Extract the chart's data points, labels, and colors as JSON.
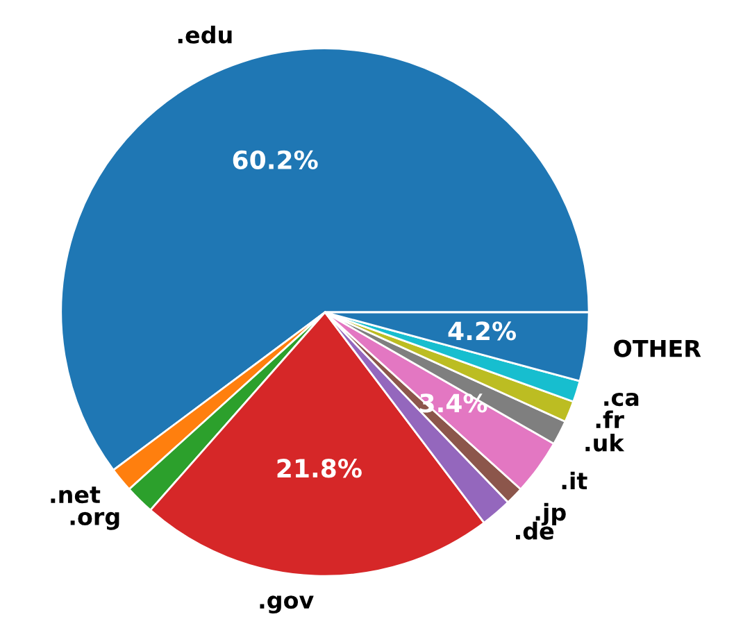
{
  "chart_data": {
    "type": "pie",
    "categories": [
      ".edu",
      ".net",
      ".org",
      ".gov",
      ".de",
      ".jp",
      ".it",
      ".uk",
      ".fr",
      ".ca",
      "OTHER"
    ],
    "values": [
      60.2,
      1.5,
      1.8,
      21.8,
      1.9,
      1.1,
      3.4,
      1.5,
      1.3,
      1.3,
      4.2
    ],
    "colors": [
      "#1f77b4",
      "#ff7f0e",
      "#2ca02c",
      "#d62728",
      "#9467bd",
      "#8c564b",
      "#e377c2",
      "#7f7f7f",
      "#bcbd22",
      "#17becf",
      "#1f77b4"
    ],
    "value_labels": [
      "60.2%",
      null,
      null,
      "21.8%",
      null,
      null,
      "3.4%",
      null,
      null,
      null,
      "4.2%"
    ]
  }
}
